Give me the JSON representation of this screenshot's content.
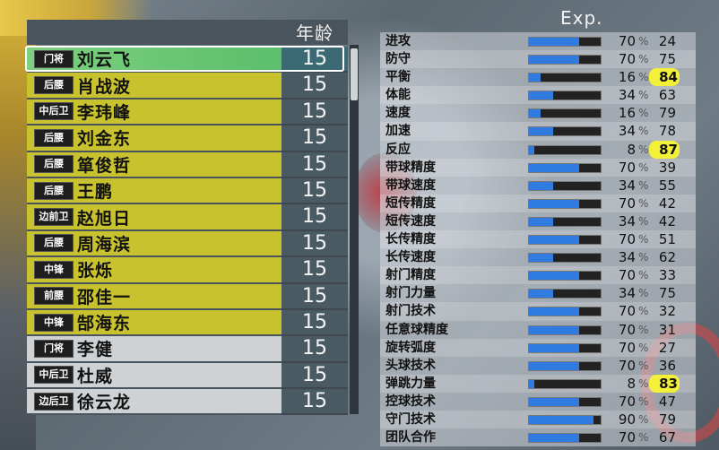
{
  "header": {
    "age_label": "年龄",
    "exp_label": "Exp."
  },
  "players": [
    {
      "pos": "门将",
      "name": "刘云飞",
      "age": "15",
      "style": "sel"
    },
    {
      "pos": "后腰",
      "name": "肖战波",
      "age": "15",
      "style": "y"
    },
    {
      "pos": "中后卫",
      "name": "李玮峰",
      "age": "15",
      "style": "y"
    },
    {
      "pos": "后腰",
      "name": "刘金东",
      "age": "15",
      "style": "y"
    },
    {
      "pos": "后腰",
      "name": "箪俊哲",
      "age": "15",
      "style": "y"
    },
    {
      "pos": "后腰",
      "name": "王鹏",
      "age": "15",
      "style": "y"
    },
    {
      "pos": "边前卫",
      "name": "赵旭日",
      "age": "15",
      "style": "y"
    },
    {
      "pos": "后腰",
      "name": "周海滨",
      "age": "15",
      "style": "y"
    },
    {
      "pos": "中锋",
      "name": "张烁",
      "age": "15",
      "style": "y"
    },
    {
      "pos": "前腰",
      "name": "邵佳一",
      "age": "15",
      "style": "y"
    },
    {
      "pos": "中锋",
      "name": "郜海东",
      "age": "15",
      "style": "y"
    },
    {
      "pos": "门将",
      "name": "李健",
      "age": "15",
      "style": "g"
    },
    {
      "pos": "中后卫",
      "name": "杜威",
      "age": "15",
      "style": "g"
    },
    {
      "pos": "边后卫",
      "name": "徐云龙",
      "age": "15",
      "style": "g"
    }
  ],
  "stats": [
    {
      "name": "进攻",
      "value": "70",
      "pct": "%",
      "exp": "24",
      "hl": false
    },
    {
      "name": "防守",
      "value": "70",
      "pct": "%",
      "exp": "75",
      "hl": false
    },
    {
      "name": "平衡",
      "value": "16",
      "pct": "%",
      "exp": "84",
      "hl": true
    },
    {
      "name": "体能",
      "value": "34",
      "pct": "%",
      "exp": "63",
      "hl": false
    },
    {
      "name": "速度",
      "value": "16",
      "pct": "%",
      "exp": "79",
      "hl": false
    },
    {
      "name": "加速",
      "value": "34",
      "pct": "%",
      "exp": "78",
      "hl": false
    },
    {
      "name": "反应",
      "value": "8",
      "pct": "%",
      "exp": "87",
      "hl": true
    },
    {
      "name": "带球精度",
      "value": "70",
      "pct": "%",
      "exp": "39",
      "hl": false
    },
    {
      "name": "带球速度",
      "value": "34",
      "pct": "%",
      "exp": "55",
      "hl": false
    },
    {
      "name": "短传精度",
      "value": "70",
      "pct": "%",
      "exp": "42",
      "hl": false
    },
    {
      "name": "短传速度",
      "value": "34",
      "pct": "%",
      "exp": "42",
      "hl": false
    },
    {
      "name": "长传精度",
      "value": "70",
      "pct": "%",
      "exp": "51",
      "hl": false
    },
    {
      "name": "长传速度",
      "value": "34",
      "pct": "%",
      "exp": "62",
      "hl": false
    },
    {
      "name": "射门精度",
      "value": "70",
      "pct": "%",
      "exp": "33",
      "hl": false
    },
    {
      "name": "射门力量",
      "value": "34",
      "pct": "%",
      "exp": "75",
      "hl": false
    },
    {
      "name": "射门技术",
      "value": "70",
      "pct": "%",
      "exp": "32",
      "hl": false
    },
    {
      "name": "任意球精度",
      "value": "70",
      "pct": "%",
      "exp": "31",
      "hl": false
    },
    {
      "name": "旋转弧度",
      "value": "70",
      "pct": "%",
      "exp": "27",
      "hl": false
    },
    {
      "name": "头球技术",
      "value": "70",
      "pct": "%",
      "exp": "36",
      "hl": false
    },
    {
      "name": "弹跳力量",
      "value": "8",
      "pct": "%",
      "exp": "83",
      "hl": true
    },
    {
      "name": "控球技术",
      "value": "70",
      "pct": "%",
      "exp": "47",
      "hl": false
    },
    {
      "name": "守门技术",
      "value": "90",
      "pct": "%",
      "exp": "79",
      "hl": false
    },
    {
      "name": "团队合作",
      "value": "70",
      "pct": "%",
      "exp": "67",
      "hl": false
    }
  ],
  "colors": {
    "bar_fill": "#2f7be0",
    "highlight": "#f3f03a",
    "row_yellow": "#c8c22e",
    "row_gray": "#cfd2d4",
    "row_selected": "#5bbf6b"
  }
}
